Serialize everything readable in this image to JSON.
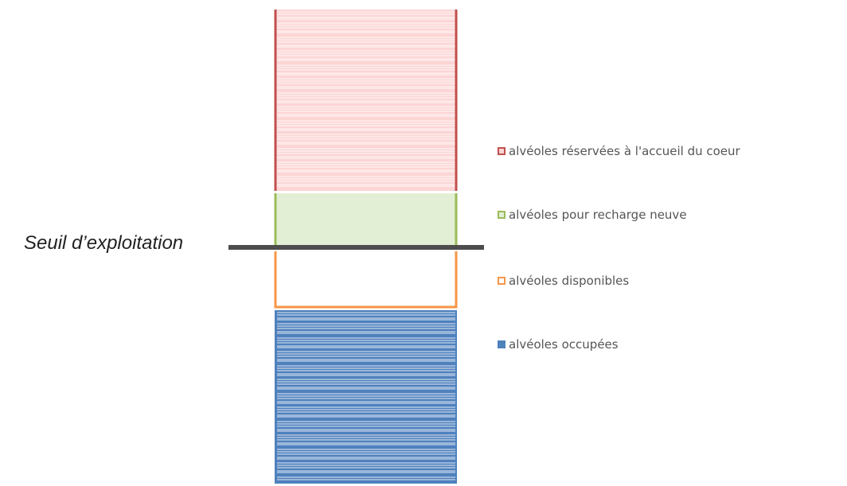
{
  "threshold_label": "Seuil d’exploitation",
  "legend": [
    {
      "label": "alvéoles réservées à l'accueil du coeur",
      "fill": "#fcd5d5",
      "stroke": "#c0504d"
    },
    {
      "label": "alvéoles pour recharge neuve",
      "fill": "#e2efd4",
      "stroke": "#9bbb59"
    },
    {
      "label": "alvéoles disponibles",
      "fill": "#ffffff",
      "stroke": "#f79646"
    },
    {
      "label": "alvéoles occupées",
      "fill": "#4f81bd",
      "stroke": "#4f81bd"
    }
  ],
  "colors": {
    "threshold_line": "#4d4d4d"
  }
}
